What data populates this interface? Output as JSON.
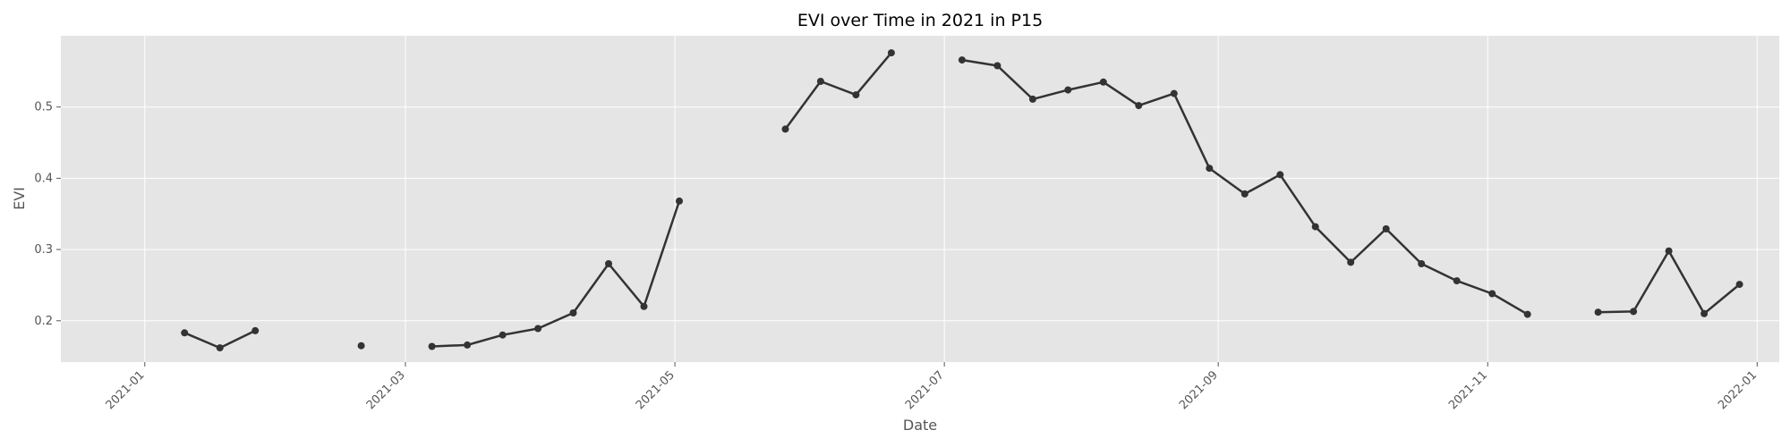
{
  "chart_data": {
    "type": "line",
    "title": "EVI over Time in 2021 in P15",
    "xlabel": "Date",
    "ylabel": "EVI",
    "xlim": [
      "2020-12-13",
      "2022-01-06"
    ],
    "ylim": [
      0.142,
      0.6
    ],
    "grid": true,
    "x_ticks": [
      "2021-01-01",
      "2021-03-01",
      "2021-05-01",
      "2021-07-01",
      "2021-09-01",
      "2021-11-01",
      "2022-01-01"
    ],
    "x_tick_labels": [
      "2021-01",
      "2021-03",
      "2021-05",
      "2021-07",
      "2021-09",
      "2021-11",
      "2022-01"
    ],
    "y_ticks": [
      0.2,
      0.3,
      0.4,
      0.5
    ],
    "y_tick_labels": [
      "0.2",
      "0.3",
      "0.4",
      "0.5"
    ],
    "segments": [
      [
        [
          "2021-01-10",
          0.183
        ],
        [
          "2021-01-18",
          0.162
        ],
        [
          "2021-01-26",
          0.186
        ]
      ],
      [
        [
          "2021-02-19",
          0.165
        ]
      ],
      [
        [
          "2021-03-07",
          0.164
        ],
        [
          "2021-03-15",
          0.166
        ],
        [
          "2021-03-23",
          0.18
        ],
        [
          "2021-03-31",
          0.189
        ],
        [
          "2021-04-08",
          0.211
        ],
        [
          "2021-04-16",
          0.28
        ],
        [
          "2021-04-24",
          0.22
        ],
        [
          "2021-05-02",
          0.368
        ]
      ],
      [
        [
          "2021-05-26",
          0.469
        ],
        [
          "2021-06-03",
          0.536
        ],
        [
          "2021-06-11",
          0.517
        ],
        [
          "2021-06-19",
          0.576
        ]
      ],
      [
        [
          "2021-07-05",
          0.566
        ],
        [
          "2021-07-13",
          0.558
        ],
        [
          "2021-07-21",
          0.511
        ],
        [
          "2021-07-29",
          0.524
        ],
        [
          "2021-08-06",
          0.535
        ],
        [
          "2021-08-14",
          0.502
        ],
        [
          "2021-08-22",
          0.519
        ],
        [
          "2021-08-30",
          0.414
        ],
        [
          "2021-09-07",
          0.378
        ],
        [
          "2021-09-15",
          0.405
        ],
        [
          "2021-09-23",
          0.332
        ],
        [
          "2021-10-01",
          0.282
        ],
        [
          "2021-10-09",
          0.329
        ],
        [
          "2021-10-17",
          0.28
        ],
        [
          "2021-10-25",
          0.256
        ],
        [
          "2021-11-02",
          0.238
        ],
        [
          "2021-11-10",
          0.209
        ]
      ],
      [
        [
          "2021-11-26",
          0.212
        ],
        [
          "2021-12-04",
          0.213
        ],
        [
          "2021-12-12",
          0.298
        ],
        [
          "2021-12-20",
          0.21
        ],
        [
          "2021-12-28",
          0.251
        ]
      ]
    ],
    "colors": {
      "plot_bg": "#e5e5e5",
      "grid": "#ffffff",
      "line": "#333333",
      "marker": "#333333"
    }
  }
}
